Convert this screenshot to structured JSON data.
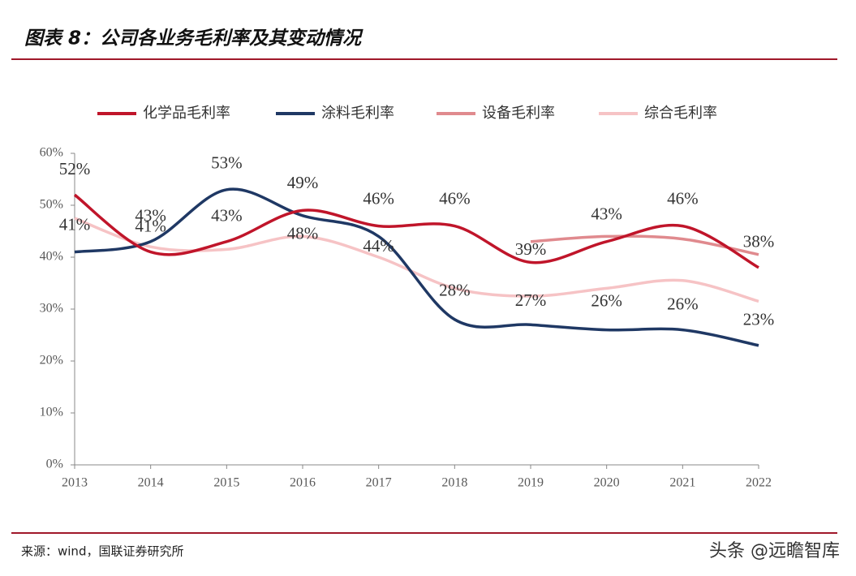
{
  "chart_data": {
    "type": "line",
    "title": "图表 8：公司各业务毛利率及其变动情况",
    "categories": [
      "2013",
      "2014",
      "2015",
      "2016",
      "2017",
      "2018",
      "2019",
      "2020",
      "2021",
      "2022"
    ],
    "series": [
      {
        "name": "化学品毛利率",
        "color": "#c0152a",
        "values": [
          52,
          41,
          43,
          49,
          46,
          46,
          39,
          43,
          46,
          38
        ],
        "value_labels": [
          "52%",
          "41%",
          "43%",
          "49%",
          "46%",
          "46%",
          "39%",
          "43%",
          "46%",
          "38%"
        ]
      },
      {
        "name": "涂料毛利率",
        "color": "#1f3864",
        "values": [
          41,
          43,
          53,
          48,
          44,
          28,
          27,
          26,
          26,
          23
        ],
        "value_labels": [
          "41%",
          "43%",
          "53%",
          "48%",
          "44%",
          "28%",
          "27%",
          "26%",
          "26%",
          "23%"
        ]
      },
      {
        "name": "设备毛利率",
        "color": "#e08a8e",
        "values": [
          null,
          null,
          null,
          null,
          null,
          null,
          43,
          44,
          43.5,
          40.5
        ]
      },
      {
        "name": "综合毛利率",
        "color": "#f6c3c5",
        "values": [
          47.5,
          42,
          41.5,
          44,
          40,
          34,
          32.5,
          34,
          35.5,
          31.5
        ]
      }
    ],
    "ylim": [
      0,
      60
    ],
    "yticks": [
      {
        "value": 0,
        "label": "0%"
      },
      {
        "value": 10,
        "label": "10%"
      },
      {
        "value": 20,
        "label": "20%"
      },
      {
        "value": 30,
        "label": "30%"
      },
      {
        "value": 40,
        "label": "40%"
      },
      {
        "value": 50,
        "label": "50%"
      },
      {
        "value": 60,
        "label": "60%"
      }
    ],
    "grid": false,
    "legend": "top"
  },
  "source": "来源：wind，国联证券研究所",
  "watermark": "头条 @远瞻智库"
}
